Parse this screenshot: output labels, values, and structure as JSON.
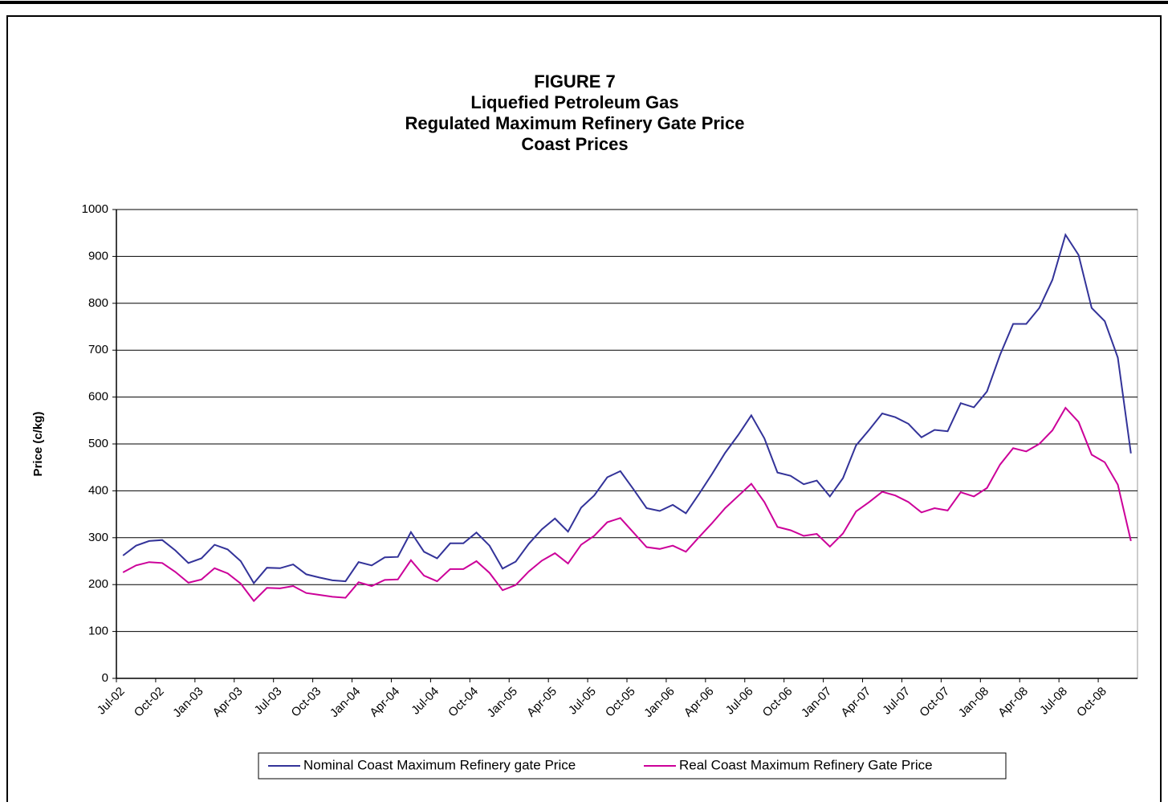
{
  "chart_data": {
    "type": "line",
    "title": [
      "FIGURE 7",
      "Liquefied  Petroleum Gas",
      "Regulated Maximum Refinery Gate Price",
      "Coast Prices"
    ],
    "ylabel": "Price (c/kg)",
    "categories": [
      "Jul-02",
      null,
      null,
      "Oct-02",
      null,
      null,
      "Jan-03",
      null,
      null,
      "Apr-03",
      null,
      null,
      "Jul-03",
      null,
      null,
      "Oct-03",
      null,
      null,
      "Jan-04",
      null,
      null,
      "Apr-04",
      null,
      null,
      "Jul-04",
      null,
      null,
      "Oct-04",
      null,
      null,
      "Jan-05",
      null,
      null,
      "Apr-05",
      null,
      null,
      "Jul-05",
      null,
      null,
      "Oct-05",
      null,
      null,
      "Jan-06",
      null,
      null,
      "Apr-06",
      null,
      null,
      "Jul-06",
      null,
      null,
      "Oct-06",
      null,
      null,
      "Jan-07",
      null,
      null,
      "Apr-07",
      null,
      null,
      "Jul-07",
      null,
      null,
      "Oct-07",
      null,
      null,
      "Jan-08",
      null,
      null,
      "Apr-08",
      null,
      null,
      "Jul-08",
      null,
      null,
      "Oct-08",
      null,
      null
    ],
    "series": [
      {
        "name": "Nominal Coast Maximum Refinery gate Price",
        "color": "#333399",
        "values": [
          262,
          283,
          293,
          295,
          273,
          246,
          256,
          285,
          275,
          250,
          203,
          236,
          235,
          243,
          222,
          215,
          209,
          207,
          248,
          241,
          258,
          259,
          312,
          270,
          256,
          288,
          288,
          311,
          283,
          234,
          249,
          287,
          318,
          341,
          313,
          364,
          390,
          429,
          442,
          403,
          363,
          357,
          370,
          352,
          393,
          436,
          481,
          519,
          561,
          512,
          439,
          432,
          414,
          422,
          388,
          427,
          497,
          530,
          565,
          557,
          543,
          514,
          530,
          527,
          587,
          578,
          612,
          690,
          756,
          756,
          790,
          850,
          946,
          903,
          790,
          762,
          684,
          480
        ]
      },
      {
        "name": "Real Coast Maximum Refinery Gate Price",
        "color": "#cc0099",
        "values": [
          226,
          241,
          248,
          246,
          227,
          204,
          211,
          235,
          224,
          202,
          165,
          193,
          192,
          197,
          182,
          178,
          174,
          172,
          205,
          197,
          210,
          211,
          252,
          219,
          207,
          233,
          233,
          250,
          225,
          188,
          199,
          228,
          251,
          267,
          245,
          285,
          304,
          333,
          342,
          311,
          280,
          276,
          283,
          270,
          301,
          331,
          363,
          389,
          415,
          376,
          323,
          316,
          304,
          308,
          281,
          309,
          356,
          376,
          398,
          390,
          376,
          354,
          363,
          358,
          397,
          388,
          406,
          456,
          491,
          484,
          500,
          529,
          577,
          547,
          477,
          461,
          413,
          293
        ]
      }
    ],
    "ylim": [
      0,
      1000
    ],
    "yticks": [
      0,
      100,
      200,
      300,
      400,
      500,
      600,
      700,
      800,
      900,
      1000
    ],
    "grid": true,
    "legend": "bottom"
  }
}
